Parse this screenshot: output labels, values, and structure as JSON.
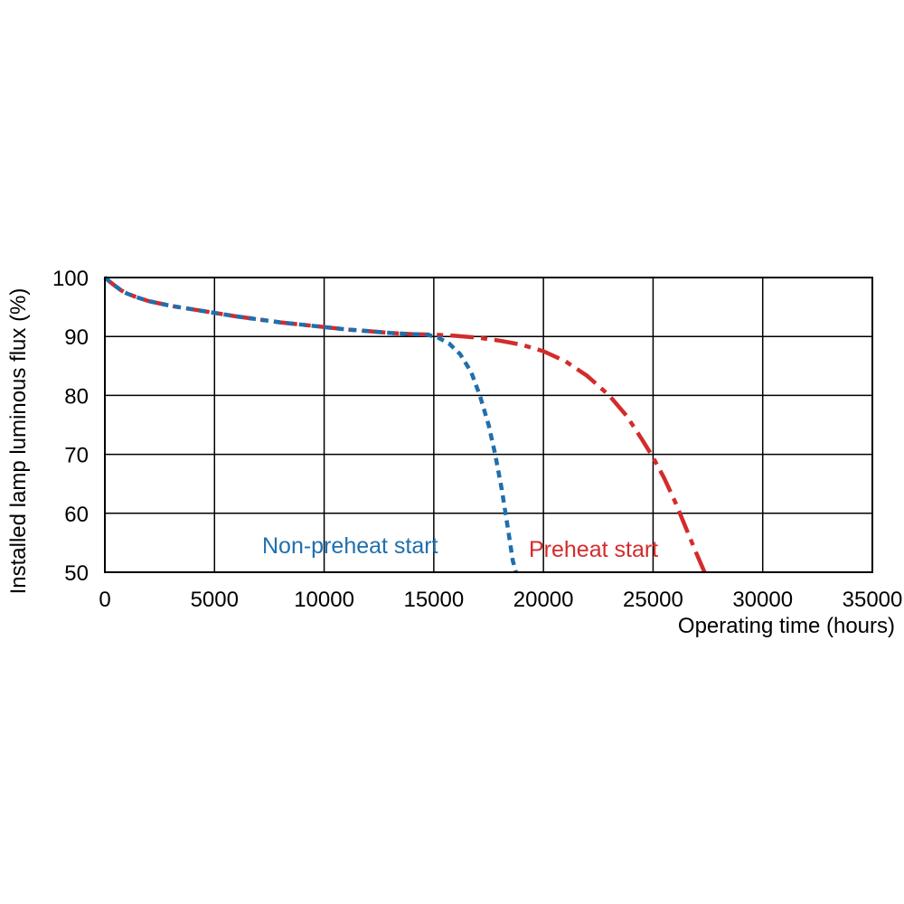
{
  "chart_data": {
    "type": "line",
    "xlabel": "Operating time (hours)",
    "ylabel": "Installed lamp luminous flux  (%)",
    "xlim": [
      0,
      35000
    ],
    "ylim": [
      50,
      100
    ],
    "x_ticks": [
      0,
      5000,
      10000,
      15000,
      20000,
      25000,
      30000,
      35000
    ],
    "y_ticks": [
      50,
      60,
      70,
      80,
      90,
      100
    ],
    "grid": true,
    "series": [
      {
        "name": "Non-preheat start",
        "color": "#1f6fae",
        "dash": "short",
        "points": [
          [
            0,
            100
          ],
          [
            250,
            99.2
          ],
          [
            500,
            98.5
          ],
          [
            750,
            97.8
          ],
          [
            1000,
            97.3
          ],
          [
            1500,
            96.6
          ],
          [
            2000,
            96.0
          ],
          [
            3000,
            95.2
          ],
          [
            4000,
            94.6
          ],
          [
            5000,
            94.0
          ],
          [
            6000,
            93.4
          ],
          [
            7000,
            92.9
          ],
          [
            8000,
            92.4
          ],
          [
            9000,
            92.0
          ],
          [
            10000,
            91.6
          ],
          [
            11000,
            91.2
          ],
          [
            12000,
            90.9
          ],
          [
            13000,
            90.6
          ],
          [
            14000,
            90.4
          ],
          [
            14700,
            90.3
          ],
          [
            15200,
            89.8
          ],
          [
            15700,
            88.8
          ],
          [
            16200,
            87.0
          ],
          [
            16700,
            84.0
          ],
          [
            17100,
            80.0
          ],
          [
            17500,
            75.0
          ],
          [
            17800,
            70.0
          ],
          [
            18100,
            64.0
          ],
          [
            18400,
            57.0
          ],
          [
            18600,
            52.0
          ],
          [
            18750,
            50.0
          ]
        ]
      },
      {
        "name": "Preheat start",
        "color": "#d42b2b",
        "dash": "long",
        "points": [
          [
            0,
            100
          ],
          [
            250,
            99.2
          ],
          [
            500,
            98.5
          ],
          [
            750,
            97.8
          ],
          [
            1000,
            97.3
          ],
          [
            1500,
            96.6
          ],
          [
            2000,
            96.0
          ],
          [
            3000,
            95.2
          ],
          [
            4000,
            94.6
          ],
          [
            5000,
            94.0
          ],
          [
            6000,
            93.4
          ],
          [
            7000,
            92.9
          ],
          [
            8000,
            92.4
          ],
          [
            9000,
            92.0
          ],
          [
            10000,
            91.6
          ],
          [
            11000,
            91.2
          ],
          [
            12000,
            90.9
          ],
          [
            13000,
            90.6
          ],
          [
            14000,
            90.4
          ],
          [
            15000,
            90.3
          ],
          [
            16000,
            90.1
          ],
          [
            17000,
            89.8
          ],
          [
            18000,
            89.3
          ],
          [
            19000,
            88.6
          ],
          [
            20000,
            87.5
          ],
          [
            21000,
            85.8
          ],
          [
            22000,
            83.3
          ],
          [
            23000,
            80.0
          ],
          [
            23800,
            76.5
          ],
          [
            24500,
            72.5
          ],
          [
            25000,
            69.5
          ],
          [
            25500,
            66.0
          ],
          [
            26000,
            62.0
          ],
          [
            26500,
            57.5
          ],
          [
            27000,
            53.0
          ],
          [
            27350,
            50.0
          ]
        ]
      }
    ],
    "annotations": [
      {
        "text": "Non-preheat start",
        "series": 0
      },
      {
        "text": "Preheat start",
        "series": 1
      }
    ]
  }
}
